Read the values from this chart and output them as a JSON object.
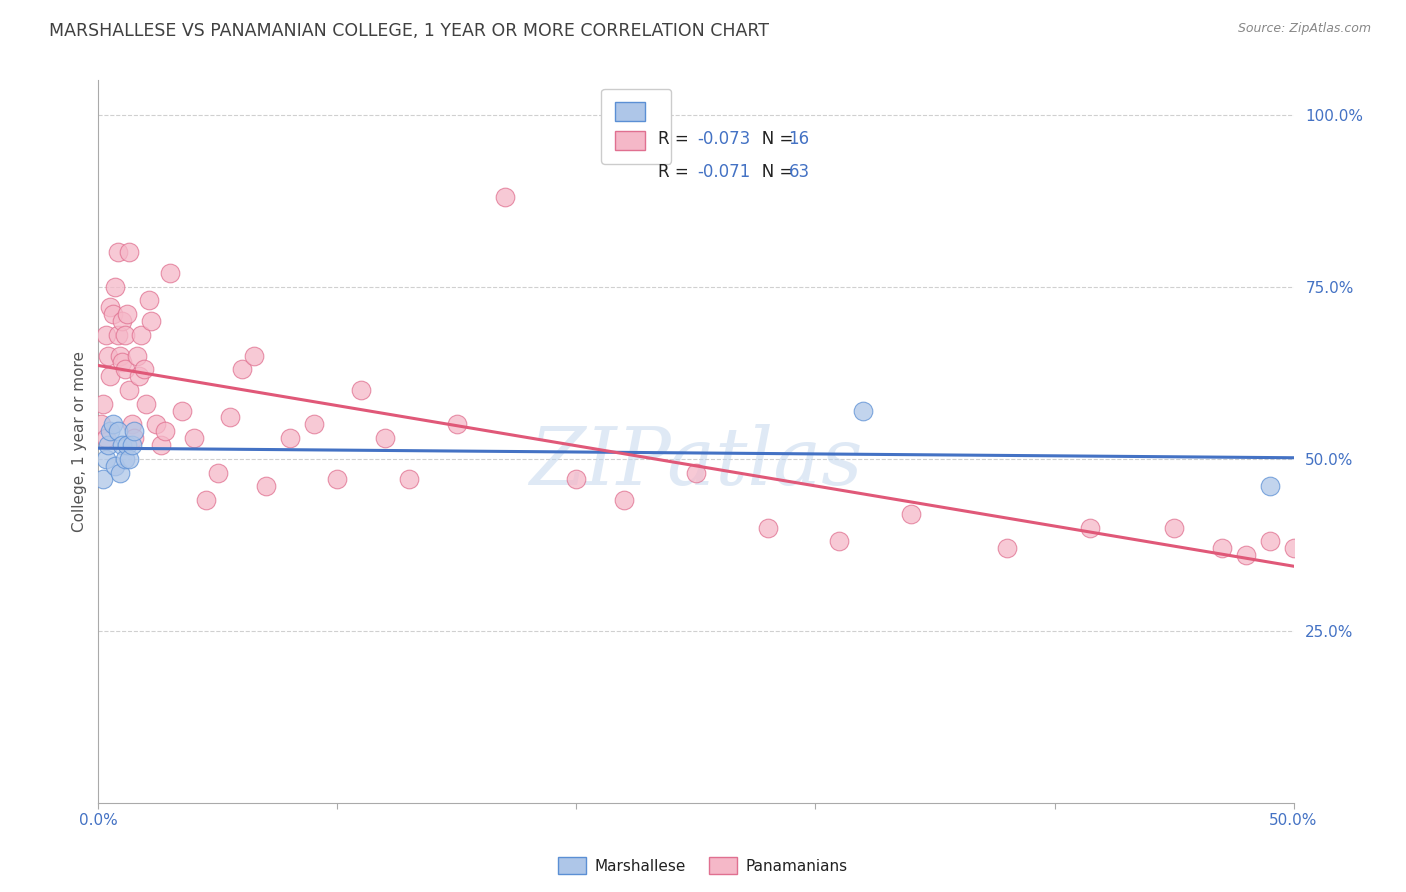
{
  "title": "MARSHALLESE VS PANAMANIAN COLLEGE, 1 YEAR OR MORE CORRELATION CHART",
  "source": "Source: ZipAtlas.com",
  "ylabel": "College, 1 year or more",
  "ytick_values": [
    0.25,
    0.5,
    0.75,
    1.0
  ],
  "ytick_labels": [
    "25.0%",
    "50.0%",
    "75.0%",
    "100.0%"
  ],
  "xlim": [
    0.0,
    0.5
  ],
  "ylim": [
    0.0,
    1.05
  ],
  "legend_r_marshallese": "-0.073",
  "legend_n_marshallese": "16",
  "legend_r_panamanian": "-0.071",
  "legend_n_panamanian": "63",
  "marshallese_fill": "#aec6e8",
  "marshallese_edge": "#5b8fd4",
  "marshallese_line": "#4472c4",
  "panamanian_fill": "#f5b8c8",
  "panamanian_edge": "#e07090",
  "panamanian_line": "#e05878",
  "watermark": "ZIPatlas",
  "background_color": "#ffffff",
  "grid_color": "#d0d0d0",
  "axis_label_color": "#4472c4",
  "title_color": "#404040",
  "source_color": "#888888",
  "marshallese_x": [
    0.002,
    0.003,
    0.004,
    0.005,
    0.006,
    0.007,
    0.008,
    0.009,
    0.01,
    0.011,
    0.012,
    0.013,
    0.014,
    0.015,
    0.32,
    0.49
  ],
  "marshallese_y": [
    0.47,
    0.5,
    0.52,
    0.54,
    0.55,
    0.49,
    0.54,
    0.48,
    0.52,
    0.5,
    0.52,
    0.5,
    0.52,
    0.54,
    0.57,
    0.46
  ],
  "panamanian_x": [
    0.001,
    0.002,
    0.003,
    0.003,
    0.004,
    0.005,
    0.005,
    0.006,
    0.007,
    0.008,
    0.008,
    0.009,
    0.01,
    0.01,
    0.011,
    0.011,
    0.012,
    0.013,
    0.013,
    0.014,
    0.015,
    0.016,
    0.017,
    0.018,
    0.019,
    0.02,
    0.021,
    0.022,
    0.024,
    0.026,
    0.028,
    0.03,
    0.035,
    0.04,
    0.045,
    0.05,
    0.055,
    0.06,
    0.065,
    0.07,
    0.08,
    0.09,
    0.1,
    0.11,
    0.12,
    0.13,
    0.15,
    0.17,
    0.2,
    0.22,
    0.25,
    0.28,
    0.31,
    0.34,
    0.38,
    0.415,
    0.45,
    0.47,
    0.48,
    0.49,
    0.5,
    0.515,
    0.525
  ],
  "panamanian_y": [
    0.55,
    0.58,
    0.53,
    0.68,
    0.65,
    0.62,
    0.72,
    0.71,
    0.75,
    0.8,
    0.68,
    0.65,
    0.7,
    0.64,
    0.68,
    0.63,
    0.71,
    0.6,
    0.8,
    0.55,
    0.53,
    0.65,
    0.62,
    0.68,
    0.63,
    0.58,
    0.73,
    0.7,
    0.55,
    0.52,
    0.54,
    0.77,
    0.57,
    0.53,
    0.44,
    0.48,
    0.56,
    0.63,
    0.65,
    0.46,
    0.53,
    0.55,
    0.47,
    0.6,
    0.53,
    0.47,
    0.55,
    0.88,
    0.47,
    0.44,
    0.48,
    0.4,
    0.38,
    0.42,
    0.37,
    0.4,
    0.4,
    0.37,
    0.36,
    0.38,
    0.37,
    0.36,
    0.37
  ]
}
